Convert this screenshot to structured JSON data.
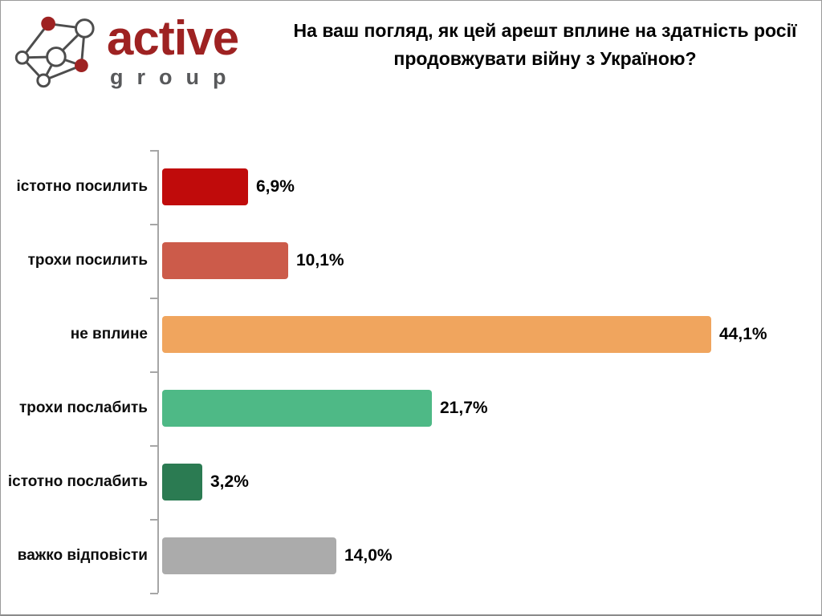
{
  "logo": {
    "brand": "active",
    "sub": "group",
    "brand_color": "#9e2222",
    "sub_color": "#58595b",
    "node_fill_color": "#9e2222",
    "edge_color": "#4d4d4d"
  },
  "header": {
    "title_lines": [
      "На ваш погляд, як цей арешт вплине на здатність росії",
      "продовжувати війну з Україною?"
    ]
  },
  "chart_data": {
    "type": "bar",
    "orientation": "horizontal",
    "title": "На ваш погляд, як цей арешт вплине на здатність росії продовжувати війну з Україною?",
    "categories": [
      "істотно посилить",
      "трохи посилить",
      "не вплине",
      "трохи послабить",
      "істотно послабить",
      "важко відповісти"
    ],
    "values": [
      6.9,
      10.1,
      44.1,
      21.7,
      3.2,
      14.0
    ],
    "value_labels": [
      "6,9%",
      "10,1%",
      "44,1%",
      "21,7%",
      "3,2%",
      "14,0%"
    ],
    "colors": [
      "#c00b0b",
      "#cc5b4a",
      "#f0a55e",
      "#4eb986",
      "#2b7b52",
      "#ababab"
    ],
    "xlim": [
      0,
      50
    ],
    "grid": false,
    "legend": false,
    "axis_color": "#a6a6a6"
  }
}
